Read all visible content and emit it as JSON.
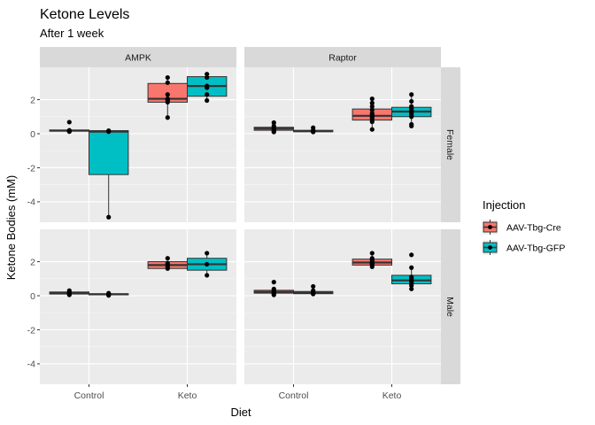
{
  "chart_data": {
    "type": "box",
    "title": "Ketone Levels",
    "subtitle": "After 1 week",
    "xlabel": "Diet",
    "ylabel": "Ketone Bodies (mM)",
    "categories": [
      "Control",
      "Keto"
    ],
    "ylim": [
      -5.2,
      3.9
    ],
    "yticks": [
      -4,
      -2,
      0,
      2
    ],
    "grid": true,
    "facet_columns": [
      "AMPK",
      "Raptor"
    ],
    "facet_rows": [
      "Female",
      "Male"
    ],
    "legend": {
      "title": "Injection",
      "position": "right",
      "items": [
        {
          "label": "AAV-Tbg-Cre",
          "color": "#F8766D"
        },
        {
          "label": "AAV-Tbg-GFP",
          "color": "#00BFC4"
        }
      ]
    },
    "panels": [
      {
        "column": "AMPK",
        "row": "Female",
        "boxes": [
          {
            "category": "Control",
            "group": "AAV-Tbg-Cre",
            "q1": 0.15,
            "median": 0.18,
            "q3": 0.22,
            "whisker_low": 0.12,
            "whisker_high": 0.22,
            "points": [
              0.68,
              0.2,
              0.15,
              0.12,
              0.18
            ],
            "outliers": [
              0.68
            ]
          },
          {
            "category": "Control",
            "group": "AAV-Tbg-GFP",
            "q1": -2.4,
            "median": 0.12,
            "q3": 0.18,
            "whisker_low": -4.9,
            "whisker_high": 0.18,
            "points": [
              0.18,
              0.12,
              -4.9
            ],
            "outliers": []
          },
          {
            "category": "Keto",
            "group": "AAV-Tbg-Cre",
            "q1": 1.85,
            "median": 2.05,
            "q3": 2.95,
            "whisker_low": 0.95,
            "whisker_high": 3.3,
            "points": [
              3.3,
              3.0,
              2.3,
              2.05,
              1.95,
              1.85,
              0.95
            ],
            "outliers": []
          },
          {
            "category": "Keto",
            "group": "AAV-Tbg-GFP",
            "q1": 2.2,
            "median": 2.8,
            "q3": 3.35,
            "whisker_low": 1.95,
            "whisker_high": 3.5,
            "points": [
              3.5,
              3.3,
              2.8,
              2.7,
              2.3,
              1.95
            ],
            "outliers": []
          }
        ]
      },
      {
        "column": "Raptor",
        "row": "Female",
        "boxes": [
          {
            "category": "Control",
            "group": "AAV-Tbg-Cre",
            "q1": 0.2,
            "median": 0.3,
            "q3": 0.38,
            "whisker_low": 0.1,
            "whisker_high": 0.45,
            "points": [
              0.65,
              0.45,
              0.35,
              0.3,
              0.25,
              0.2,
              0.15,
              0.1
            ],
            "outliers": [
              0.65
            ]
          },
          {
            "category": "Control",
            "group": "AAV-Tbg-GFP",
            "q1": 0.12,
            "median": 0.15,
            "q3": 0.2,
            "whisker_low": 0.08,
            "whisker_high": 0.25,
            "points": [
              0.35,
              0.2,
              0.15,
              0.12,
              0.1
            ],
            "outliers": [
              0.35
            ]
          },
          {
            "category": "Keto",
            "group": "AAV-Tbg-Cre",
            "q1": 0.8,
            "median": 1.05,
            "q3": 1.45,
            "whisker_low": 0.25,
            "whisker_high": 2.05,
            "points": [
              2.05,
              1.8,
              1.6,
              1.4,
              1.2,
              1.1,
              1.0,
              0.9,
              0.8,
              0.7,
              0.25
            ],
            "outliers": []
          },
          {
            "category": "Keto",
            "group": "AAV-Tbg-GFP",
            "q1": 1.0,
            "median": 1.3,
            "q3": 1.55,
            "whisker_low": 0.45,
            "whisker_high": 2.3,
            "points": [
              2.3,
              1.9,
              1.6,
              1.5,
              1.4,
              1.3,
              1.2,
              1.1,
              1.0,
              0.55,
              0.45
            ],
            "outliers": []
          }
        ]
      },
      {
        "column": "AMPK",
        "row": "Male",
        "boxes": [
          {
            "category": "Control",
            "group": "AAV-Tbg-Cre",
            "q1": 0.1,
            "median": 0.15,
            "q3": 0.22,
            "whisker_low": 0.05,
            "whisker_high": 0.3,
            "points": [
              0.3,
              0.2,
              0.15,
              0.1,
              0.05
            ],
            "outliers": []
          },
          {
            "category": "Control",
            "group": "AAV-Tbg-GFP",
            "q1": 0.05,
            "median": 0.08,
            "q3": 0.12,
            "whisker_low": 0.02,
            "whisker_high": 0.15,
            "points": [
              0.15,
              0.1,
              0.06,
              0.02
            ],
            "outliers": []
          },
          {
            "category": "Keto",
            "group": "AAV-Tbg-Cre",
            "q1": 1.6,
            "median": 1.8,
            "q3": 2.0,
            "whisker_low": 1.55,
            "whisker_high": 2.2,
            "points": [
              2.2,
              1.9,
              1.8,
              1.7,
              1.6
            ],
            "outliers": []
          },
          {
            "category": "Keto",
            "group": "AAV-Tbg-GFP",
            "q1": 1.5,
            "median": 1.85,
            "q3": 2.2,
            "whisker_low": 1.2,
            "whisker_high": 2.5,
            "points": [
              2.5,
              1.85,
              1.2
            ],
            "outliers": []
          }
        ]
      },
      {
        "column": "Raptor",
        "row": "Male",
        "boxes": [
          {
            "category": "Control",
            "group": "AAV-Tbg-Cre",
            "q1": 0.15,
            "median": 0.22,
            "q3": 0.32,
            "whisker_low": 0.05,
            "whisker_high": 0.45,
            "points": [
              0.8,
              0.4,
              0.3,
              0.2,
              0.15,
              0.1,
              0.05
            ],
            "outliers": [
              0.8
            ]
          },
          {
            "category": "Control",
            "group": "AAV-Tbg-GFP",
            "q1": 0.12,
            "median": 0.18,
            "q3": 0.25,
            "whisker_low": 0.05,
            "whisker_high": 0.35,
            "points": [
              0.55,
              0.3,
              0.2,
              0.15,
              0.1
            ],
            "outliers": [
              0.55
            ]
          },
          {
            "category": "Keto",
            "group": "AAV-Tbg-Cre",
            "q1": 1.8,
            "median": 1.95,
            "q3": 2.15,
            "whisker_low": 1.65,
            "whisker_high": 2.5,
            "points": [
              2.5,
              2.2,
              2.1,
              2.0,
              1.95,
              1.9,
              1.85,
              1.8,
              1.7
            ],
            "outliers": []
          },
          {
            "category": "Keto",
            "group": "AAV-Tbg-GFP",
            "q1": 0.7,
            "median": 0.9,
            "q3": 1.2,
            "whisker_low": 0.35,
            "whisker_high": 1.65,
            "points": [
              2.4,
              1.65,
              1.1,
              1.0,
              0.9,
              0.8,
              0.7,
              0.6,
              0.4
            ],
            "outliers": [
              2.4
            ]
          }
        ]
      }
    ]
  }
}
